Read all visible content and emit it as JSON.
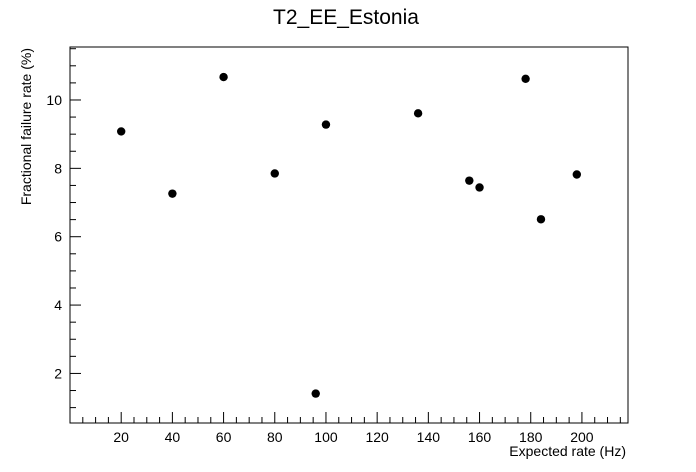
{
  "chart_data": {
    "type": "scatter",
    "title": "T2_EE_Estonia",
    "xlabel": "Expected rate (Hz)",
    "ylabel": "Fractional failure rate (%)",
    "xlim": [
      0,
      218
    ],
    "ylim": [
      0.55,
      11.55
    ],
    "x_ticks": [
      20,
      40,
      60,
      80,
      100,
      120,
      140,
      160,
      180,
      200
    ],
    "y_ticks": [
      2,
      4,
      6,
      8,
      10
    ],
    "grid": false,
    "legend": "none",
    "marker_color": "#000000",
    "x": [
      20,
      40,
      60,
      80,
      96,
      100,
      136,
      156,
      160,
      178,
      184,
      198
    ],
    "y": [
      9.08,
      7.26,
      10.67,
      7.85,
      1.41,
      9.28,
      9.61,
      7.64,
      7.44,
      10.62,
      6.51,
      7.82
    ]
  }
}
